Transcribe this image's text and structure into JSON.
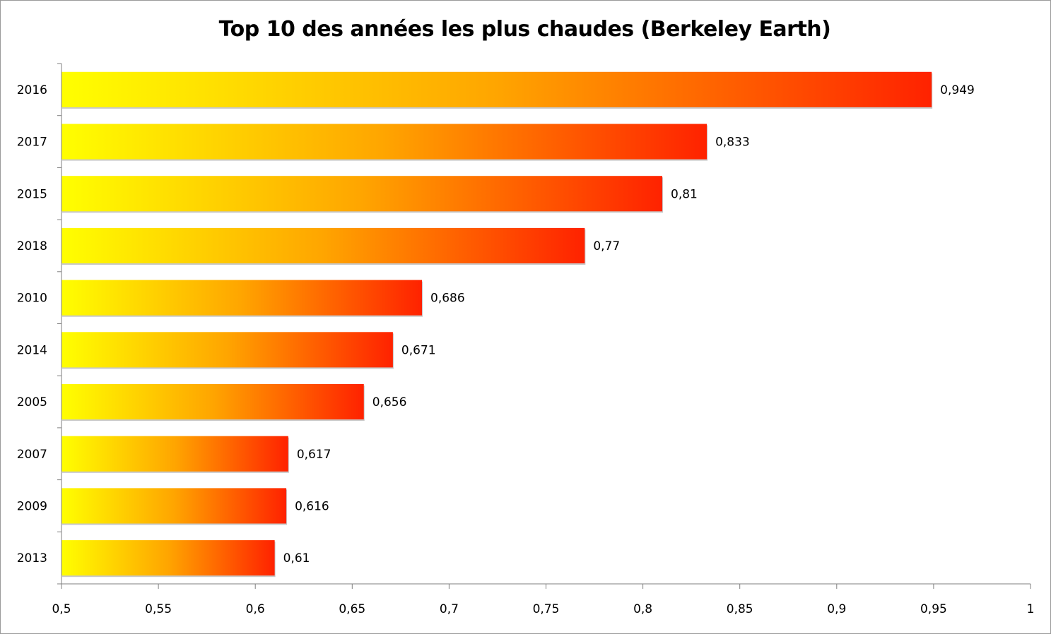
{
  "chart_data": {
    "type": "bar",
    "orientation": "horizontal",
    "title": "Top 10 des années les plus chaudes (Berkeley Earth)",
    "xlabel": "",
    "ylabel": "",
    "categories": [
      "2016",
      "2017",
      "2015",
      "2018",
      "2010",
      "2014",
      "2005",
      "2007",
      "2009",
      "2013"
    ],
    "values": [
      0.949,
      0.833,
      0.81,
      0.77,
      0.686,
      0.671,
      0.656,
      0.617,
      0.616,
      0.61
    ],
    "data_labels": [
      "0,949",
      "0,833",
      "0,81",
      "0,77",
      "0,686",
      "0,671",
      "0,656",
      "0,617",
      "0,616",
      "0,61"
    ],
    "xlim": [
      0.5,
      1
    ],
    "x_ticks": [
      0.5,
      0.55,
      0.6,
      0.65,
      0.7,
      0.75,
      0.8,
      0.85,
      0.9,
      0.95,
      1
    ],
    "x_tick_labels": [
      "0,5",
      "0,55",
      "0,6",
      "0,65",
      "0,7",
      "0,75",
      "0,8",
      "0,85",
      "0,9",
      "0,95",
      "1"
    ],
    "grid": false,
    "legend": "none",
    "bar_gradient": {
      "start": "#ffff00",
      "mid": "#ffa500",
      "end": "#ff2200"
    },
    "axis_color": "#7f7f7f"
  }
}
